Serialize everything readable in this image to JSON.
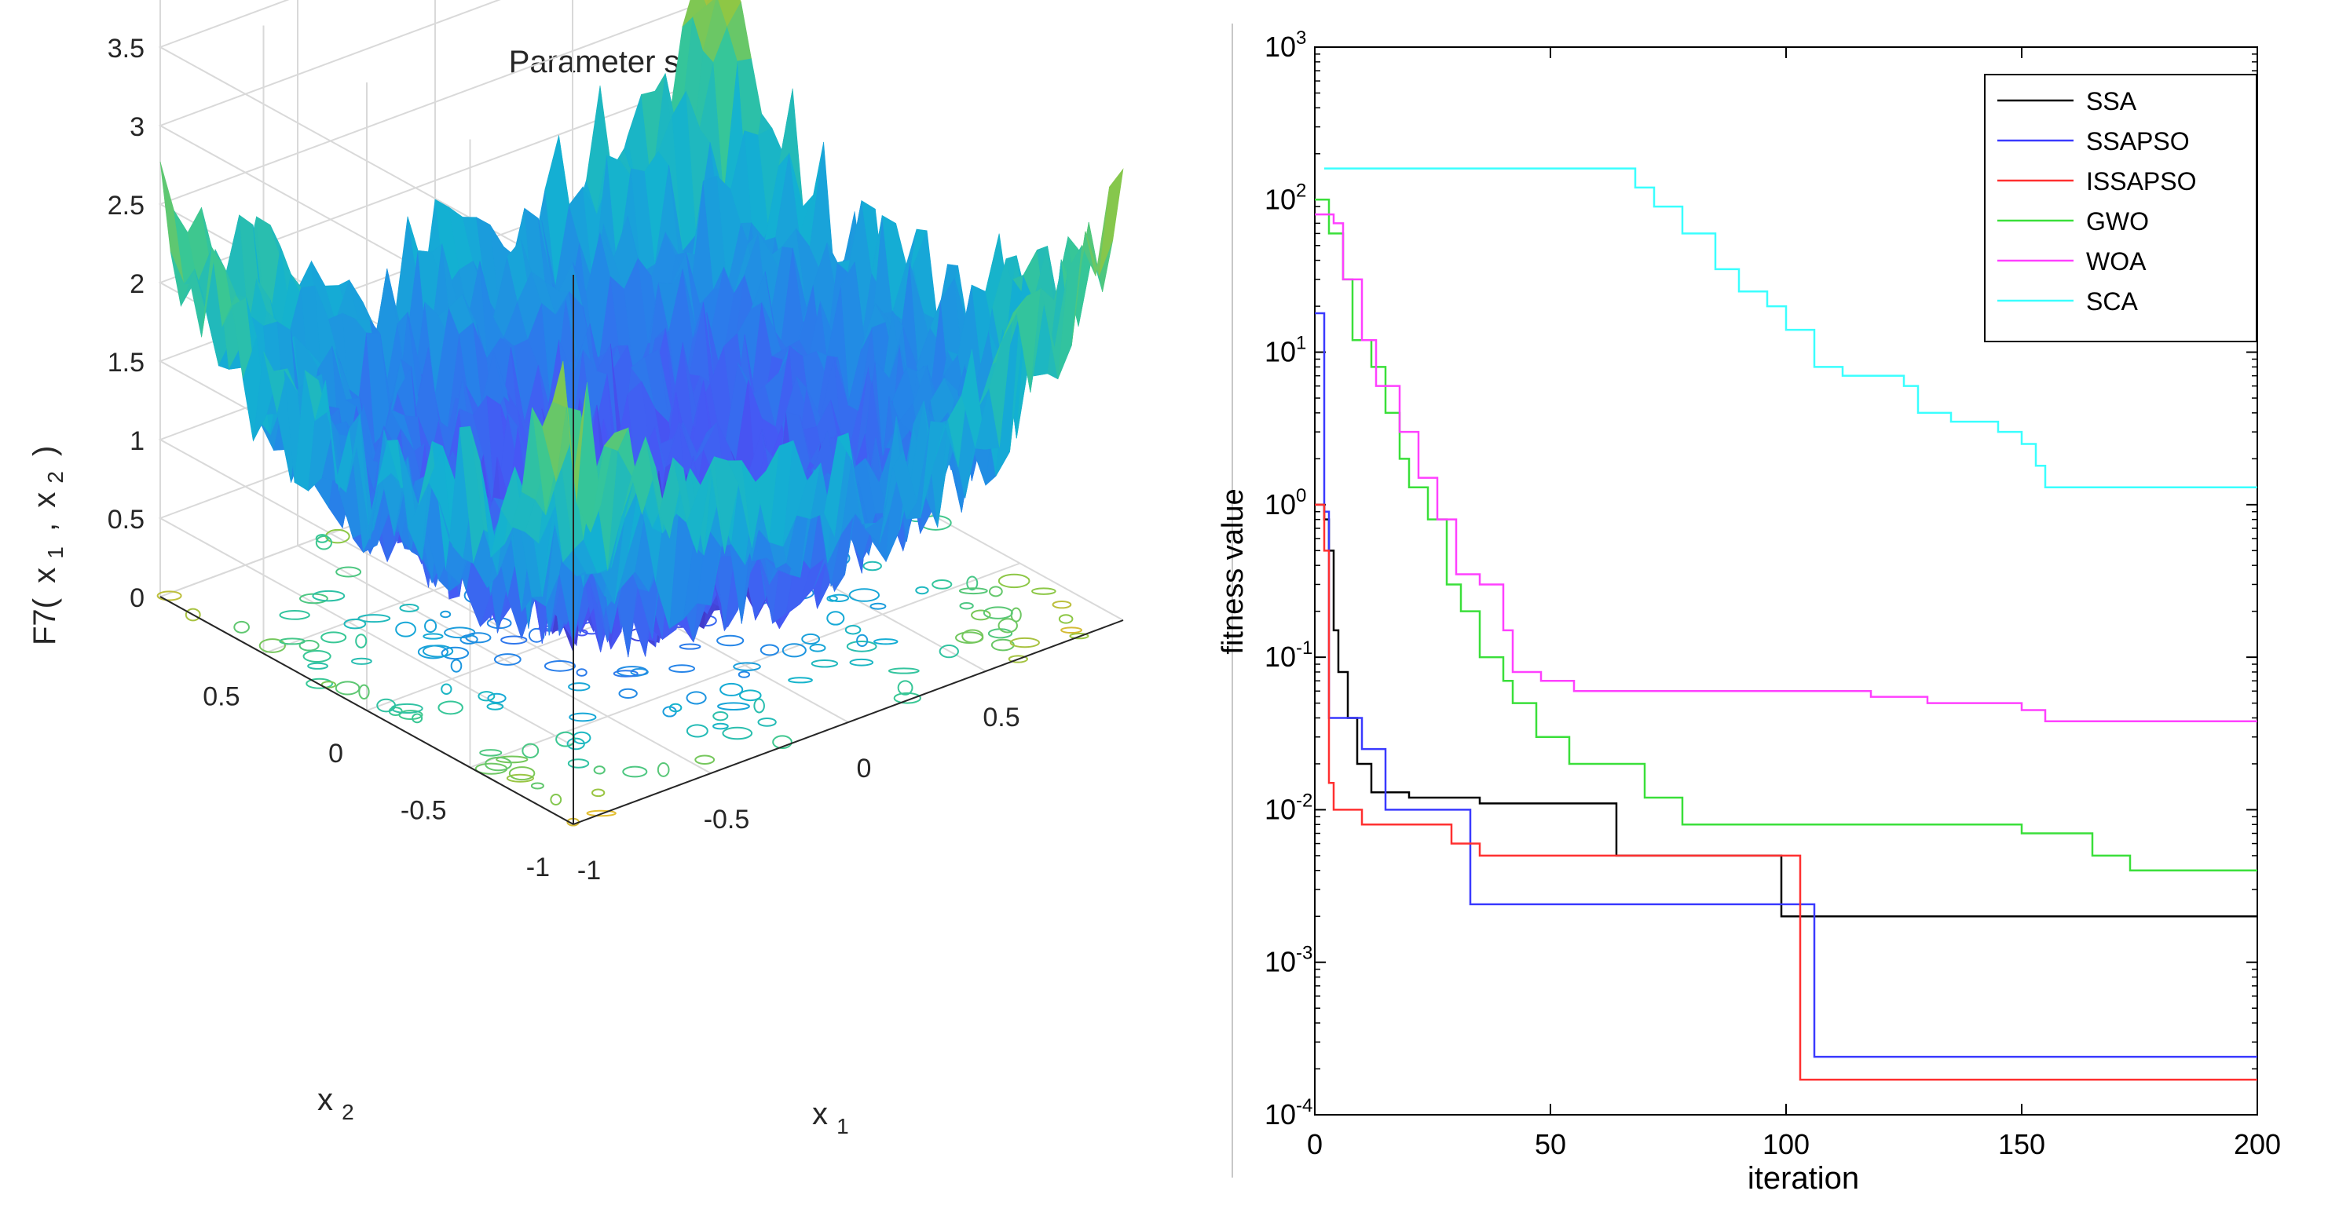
{
  "chart_data": [
    {
      "type": "surface3d",
      "title": "Parameter space",
      "zlabel": "F7( x 1 , x 2 )",
      "zlabel_parts": {
        "f": "F7(",
        "x": "x",
        "s1": "1",
        "comma": ",",
        "s2": "2",
        "close": ")"
      },
      "xlabel": "x 1",
      "xlabel_parts": {
        "x": "x",
        "sub": "1"
      },
      "ylabel": "x 2",
      "ylabel_parts": {
        "x": "x",
        "sub": "2"
      },
      "xlim": [
        -1,
        1
      ],
      "ylim": [
        -1,
        1
      ],
      "zlim": [
        0,
        3.5
      ],
      "z_ticks": [
        "0",
        "0.5",
        "1",
        "1.5",
        "2",
        "2.5",
        "3",
        "3.5"
      ],
      "x1_ticks": [
        "-1",
        "-0.5",
        "0",
        "0.5"
      ],
      "x2_ticks": [
        "0.5",
        "0",
        "-0.5",
        "-1"
      ],
      "description_values": {
        "min": 0,
        "max": 3.6
      },
      "grid": true
    },
    {
      "type": "line",
      "xlabel": "iteration",
      "ylabel": "fitness value",
      "yscale": "log",
      "xlim": [
        0,
        200
      ],
      "ylim": [
        0.0001,
        1000
      ],
      "x_ticks": [
        "0",
        "50",
        "100",
        "150",
        "200"
      ],
      "y_tick_values": [
        -4,
        -3,
        -2,
        -1,
        0,
        1,
        2,
        3
      ],
      "y_tick_base": "10",
      "y_tick_exps": [
        "-4",
        "-3",
        "-2",
        "-1",
        "0",
        "1",
        "2",
        "3"
      ],
      "legend_position": "top-right",
      "series": [
        {
          "name": "SSA",
          "color": "#000000",
          "points": [
            [
              0,
              1
            ],
            [
              2,
              0.8
            ],
            [
              3,
              0.5
            ],
            [
              4,
              0.15
            ],
            [
              5,
              0.08
            ],
            [
              7,
              0.04
            ],
            [
              9,
              0.02
            ],
            [
              12,
              0.013
            ],
            [
              20,
              0.012
            ],
            [
              25,
              0.012
            ],
            [
              35,
              0.011
            ],
            [
              63,
              0.011
            ],
            [
              64,
              0.005
            ],
            [
              98,
              0.005
            ],
            [
              98,
              0.005
            ],
            [
              99,
              0.002
            ],
            [
              200,
              0.002
            ]
          ]
        },
        {
          "name": "SSAPSO",
          "color": "#3a3aff",
          "points": [
            [
              0,
              18
            ],
            [
              2,
              0.9
            ],
            [
              3,
              0.04
            ],
            [
              8,
              0.04
            ],
            [
              10,
              0.025
            ],
            [
              15,
              0.01
            ],
            [
              32,
              0.01
            ],
            [
              33,
              0.0024
            ],
            [
              105,
              0.0024
            ],
            [
              106,
              0.00024
            ],
            [
              200,
              0.00024
            ]
          ]
        },
        {
          "name": "ISSAPSO",
          "color": "#ff3030",
          "points": [
            [
              0,
              1
            ],
            [
              2,
              0.5
            ],
            [
              3,
              0.015
            ],
            [
              4,
              0.01
            ],
            [
              10,
              0.008
            ],
            [
              28,
              0.008
            ],
            [
              29,
              0.006
            ],
            [
              35,
              0.005
            ],
            [
              102,
              0.005
            ],
            [
              103,
              0.00017
            ],
            [
              200,
              0.00017
            ]
          ]
        },
        {
          "name": "GWO",
          "color": "#3adf3a",
          "points": [
            [
              0,
              100
            ],
            [
              3,
              60
            ],
            [
              6,
              30
            ],
            [
              8,
              12
            ],
            [
              12,
              8
            ],
            [
              15,
              4
            ],
            [
              18,
              2
            ],
            [
              20,
              1.3
            ],
            [
              24,
              0.8
            ],
            [
              28,
              0.3
            ],
            [
              31,
              0.2
            ],
            [
              35,
              0.1
            ],
            [
              40,
              0.07
            ],
            [
              42,
              0.05
            ],
            [
              47,
              0.03
            ],
            [
              54,
              0.02
            ],
            [
              70,
              0.012
            ],
            [
              78,
              0.008
            ],
            [
              95,
              0.008
            ],
            [
              110,
              0.008
            ],
            [
              150,
              0.007
            ],
            [
              165,
              0.005
            ],
            [
              173,
              0.004
            ],
            [
              200,
              0.004
            ]
          ]
        },
        {
          "name": "WOA",
          "color": "#ff40ff",
          "points": [
            [
              0,
              80
            ],
            [
              4,
              70
            ],
            [
              6,
              30
            ],
            [
              10,
              12
            ],
            [
              13,
              6
            ],
            [
              18,
              3
            ],
            [
              22,
              1.5
            ],
            [
              26,
              0.8
            ],
            [
              30,
              0.35
            ],
            [
              35,
              0.3
            ],
            [
              40,
              0.15
            ],
            [
              42,
              0.08
            ],
            [
              48,
              0.07
            ],
            [
              55,
              0.06
            ],
            [
              115,
              0.06
            ],
            [
              118,
              0.055
            ],
            [
              130,
              0.05
            ],
            [
              150,
              0.045
            ],
            [
              155,
              0.038
            ],
            [
              200,
              0.038
            ]
          ]
        },
        {
          "name": "SCA",
          "color": "#3affff",
          "points": [
            [
              2,
              160
            ],
            [
              65,
              160
            ],
            [
              68,
              120
            ],
            [
              72,
              90
            ],
            [
              78,
              60
            ],
            [
              85,
              35
            ],
            [
              90,
              25
            ],
            [
              96,
              20
            ],
            [
              100,
              14
            ],
            [
              106,
              8
            ],
            [
              112,
              7
            ],
            [
              125,
              6
            ],
            [
              128,
              4
            ],
            [
              135,
              3.5
            ],
            [
              145,
              3
            ],
            [
              150,
              2.5
            ],
            [
              153,
              1.8
            ],
            [
              155,
              1.3
            ],
            [
              200,
              1.3
            ]
          ]
        }
      ]
    }
  ]
}
